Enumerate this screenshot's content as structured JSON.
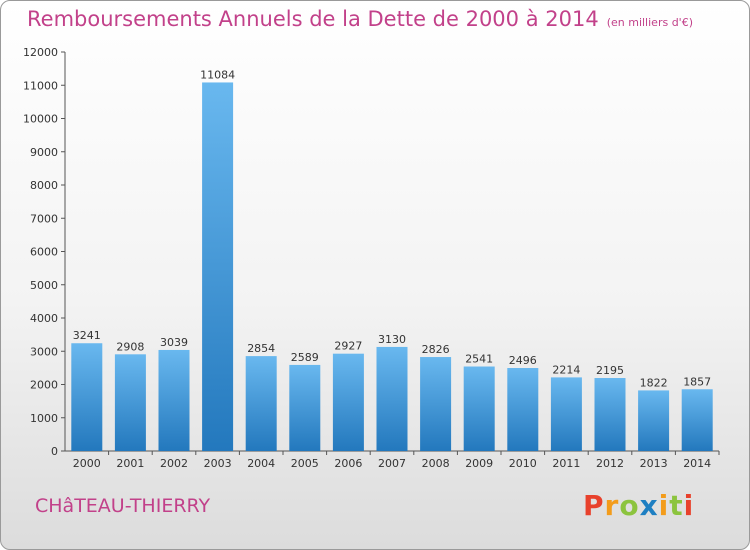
{
  "title": "Remboursements Annuels de la Dette de 2000 à 2014",
  "unit": "(en milliers d'€)",
  "commune": "CHâTEAU-THIERRY",
  "logo": {
    "letters": [
      {
        "char": "P",
        "color": "#e8412c"
      },
      {
        "char": "r",
        "color": "#f39c1b"
      },
      {
        "char": "o",
        "color": "#8cc43e"
      },
      {
        "char": "x",
        "color": "#1e7fc2"
      },
      {
        "char": "i",
        "color": "#f39c1b"
      },
      {
        "char": "t",
        "color": "#8cc43e"
      },
      {
        "char": "i",
        "color": "#e8412c"
      }
    ]
  },
  "colors": {
    "title": "#c2418a",
    "bar_top": "#69b8ef",
    "bar_bottom": "#2378bd",
    "axis": "#555555"
  },
  "chart_data": {
    "type": "bar",
    "title": "Remboursements Annuels de la Dette de 2000 à 2014",
    "xlabel": "",
    "ylabel": "",
    "ylim": [
      0,
      12000
    ],
    "yticks": [
      0,
      1000,
      2000,
      3000,
      4000,
      5000,
      6000,
      7000,
      8000,
      9000,
      10000,
      11000,
      12000
    ],
    "grid": false,
    "categories": [
      "2000",
      "2001",
      "2002",
      "2003",
      "2004",
      "2005",
      "2006",
      "2007",
      "2008",
      "2009",
      "2010",
      "2011",
      "2012",
      "2013",
      "2014"
    ],
    "values": [
      3241,
      2908,
      3039,
      11084,
      2854,
      2589,
      2927,
      3130,
      2826,
      2541,
      2496,
      2214,
      2195,
      1822,
      1857
    ]
  }
}
